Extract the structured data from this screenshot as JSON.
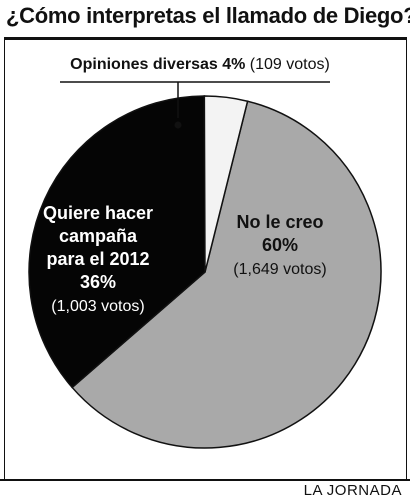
{
  "header": {
    "title": "¿Cómo interpretas el llamado de Diego?"
  },
  "footer": {
    "credit": "LA JORNADA"
  },
  "chart_data": {
    "type": "pie",
    "title": "¿Cómo interpretas el llamado de Diego?",
    "slices": [
      {
        "lines": [
          "No le creo"
        ],
        "percent_label": "60%",
        "votes_label": "(1,649 votos)",
        "value": 1649,
        "color": "#a9a9a9",
        "text_color": "#111111"
      },
      {
        "lines": [
          "Quiere hacer",
          "campaña",
          "para el 2012"
        ],
        "percent_label": "36%",
        "votes_label": "(1,003 votos)",
        "value": 1003,
        "color": "#050505",
        "text_color": "#ffffff"
      },
      {
        "lines": [
          "Opiniones diversas 4%"
        ],
        "percent_label": "",
        "votes_label": "(109 votos)",
        "value": 109,
        "color": "#f3f3f3",
        "text_color": "#111111"
      }
    ],
    "legend": "none"
  }
}
